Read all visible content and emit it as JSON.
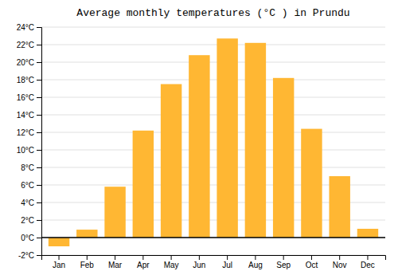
{
  "chart_data": {
    "type": "bar",
    "title": "Average monthly temperatures (°C ) in Prundu",
    "categories": [
      "Jan",
      "Feb",
      "Mar",
      "Apr",
      "May",
      "Jun",
      "Jul",
      "Aug",
      "Sep",
      "Oct",
      "Nov",
      "Dec"
    ],
    "values": [
      -1.0,
      0.9,
      5.8,
      12.2,
      17.5,
      20.8,
      22.7,
      22.2,
      18.2,
      12.4,
      7.0,
      1.0
    ],
    "color": "#FFB733",
    "ylim": [
      -2,
      24
    ],
    "yticks": [
      {
        "value": -2,
        "label": "-2°C"
      },
      {
        "value": 0,
        "label": "0°C"
      },
      {
        "value": 2,
        "label": "2°C"
      },
      {
        "value": 4,
        "label": "4°C"
      },
      {
        "value": 6,
        "label": "6°C"
      },
      {
        "value": 8,
        "label": "8°C"
      },
      {
        "value": 10,
        "label": "10°C"
      },
      {
        "value": 12,
        "label": "12°C"
      },
      {
        "value": 14,
        "label": "14°C"
      },
      {
        "value": 16,
        "label": "16°C"
      },
      {
        "value": 18,
        "label": "18°C"
      },
      {
        "value": 20,
        "label": "20°C"
      },
      {
        "value": 22,
        "label": "22°C"
      },
      {
        "value": 24,
        "label": "24°C"
      }
    ],
    "grid": true
  }
}
